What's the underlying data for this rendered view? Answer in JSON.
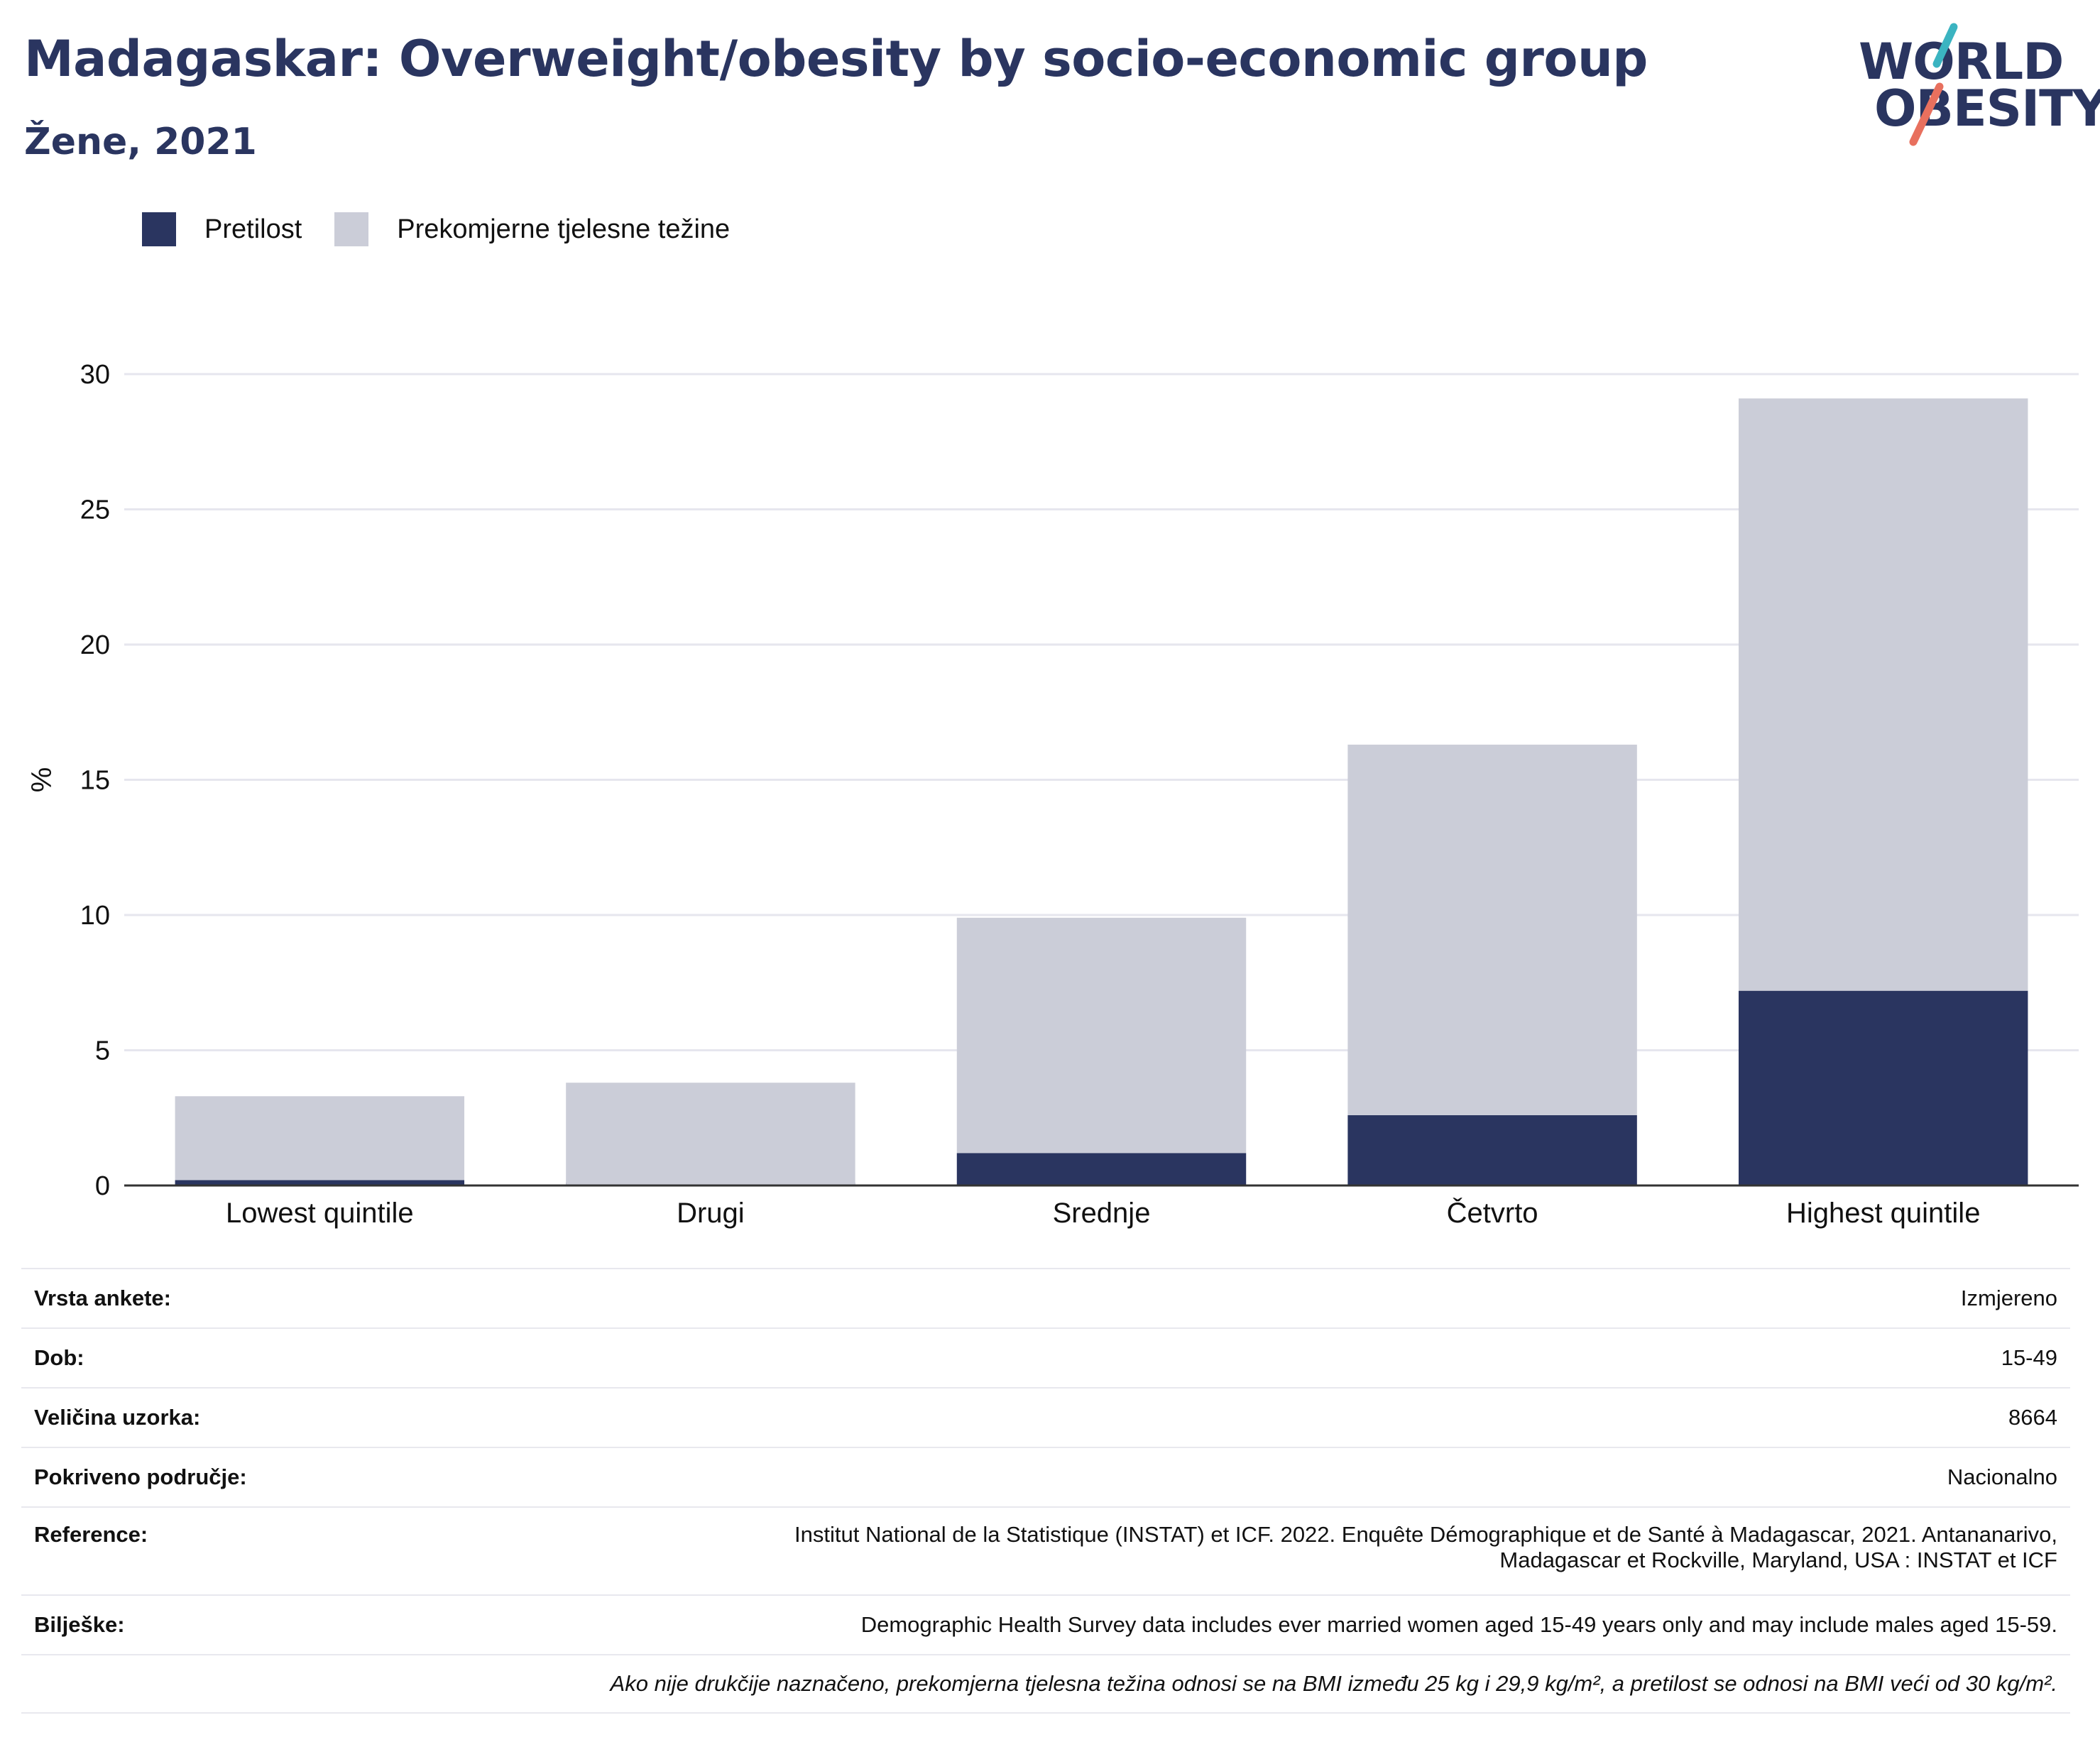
{
  "header": {
    "title": "Madagaskar: Overweight/obesity by socio-economic group",
    "subtitle": "Žene, 2021"
  },
  "logo": {
    "line1": "WORLD",
    "line2": "OBESITY",
    "accent_teal": "#3bb4c1",
    "accent_red": "#e8705e"
  },
  "colors": {
    "obesity": "#2a3560",
    "overweight": "#cbcdd8",
    "gridline": "#e6e6ee",
    "axis": "#333333"
  },
  "chart_data": {
    "type": "bar",
    "stacked": true,
    "categories": [
      "Lowest quintile",
      "Drugi",
      "Srednje",
      "Četvrto",
      "Highest quintile"
    ],
    "series": [
      {
        "name": "Pretilost",
        "values": [
          0.2,
          0.0,
          1.2,
          2.6,
          7.2
        ]
      },
      {
        "name": "Prekomjerne tjelesne težine",
        "values": [
          3.1,
          3.8,
          8.7,
          13.7,
          21.9
        ]
      }
    ],
    "ylabel": "%",
    "ylim": [
      0,
      30
    ],
    "yticks": [
      0,
      5,
      10,
      15,
      20,
      25,
      30
    ],
    "legend_position": "top-left",
    "grid": true
  },
  "meta": {
    "rows": [
      {
        "key": "Vrsta ankete:",
        "value": "Izmjereno"
      },
      {
        "key": "Dob:",
        "value": "15-49"
      },
      {
        "key": "Veličina uzorka:",
        "value": "8664"
      },
      {
        "key": "Pokriveno područje:",
        "value": "Nacionalno"
      },
      {
        "key": "Reference:",
        "value_line1": "Institut National de la Statistique (INSTAT) et ICF. 2022. Enquête Démographique et de Santé à Madagascar, 2021. Antananarivo,",
        "value_line2": "Madagascar et Rockville, Maryland, USA : INSTAT et ICF"
      },
      {
        "key": "Bilješke:",
        "value": "Demographic Health Survey data includes ever married women aged 15-49 years only and may include males aged 15-59."
      }
    ],
    "footnote": "Ako nije drukčije naznačeno, prekomjerna tjelesna težina odnosi se na BMI između 25 kg i 29,9 kg/m², a pretilost se odnosi na BMI veći od 30 kg/m²."
  }
}
